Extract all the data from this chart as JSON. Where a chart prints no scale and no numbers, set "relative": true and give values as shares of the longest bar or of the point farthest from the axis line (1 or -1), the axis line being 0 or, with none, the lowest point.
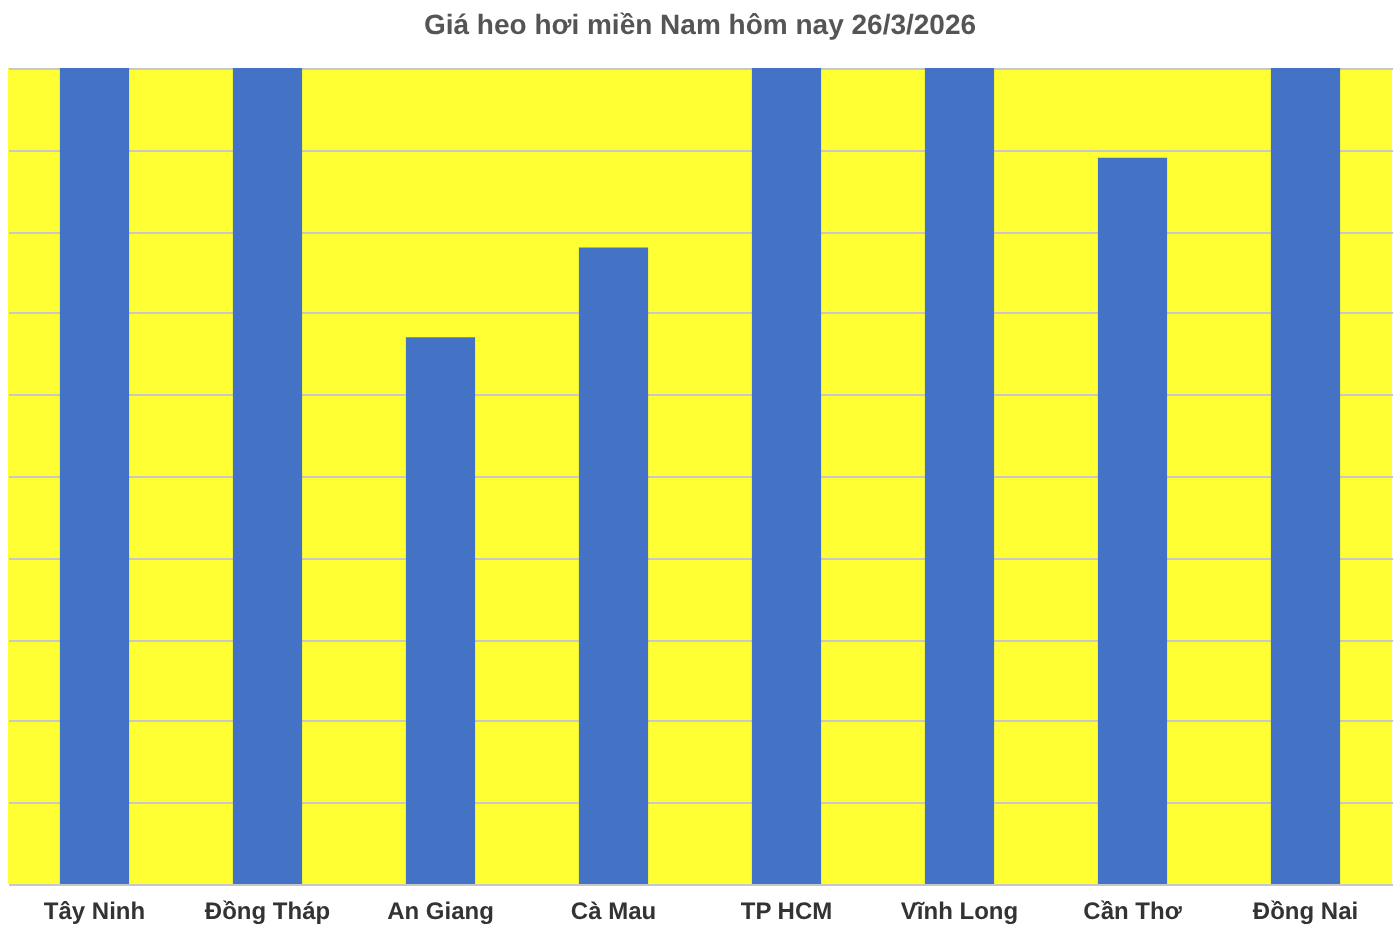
{
  "chart_data": {
    "type": "bar",
    "title": "Giá heo hơi miền Nam hôm nay 26/3/2026",
    "categories": [
      "Tây Ninh",
      "Đồng Tháp",
      "An Giang",
      "Cà Mau",
      "TP HCM",
      "Vĩnh Long",
      "Cần Thơ",
      "Đồng Nai"
    ],
    "values": [
      1,
      1,
      0.67,
      0.78,
      1,
      1,
      0.89,
      1
    ],
    "color": "#4472c4",
    "relative": true,
    "grid": "y"
  }
}
